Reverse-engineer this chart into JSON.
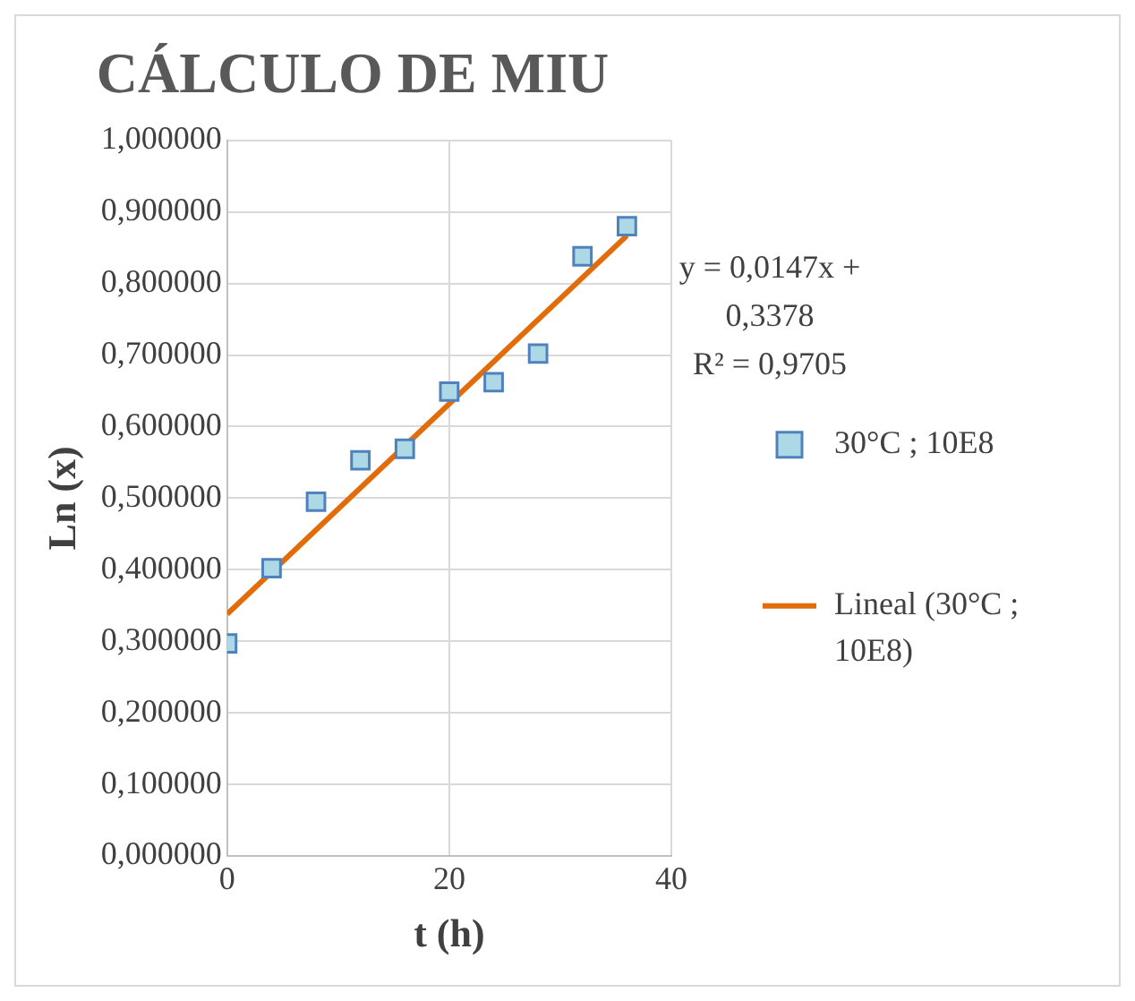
{
  "chart_data": {
    "type": "scatter",
    "title": "CÁLCULO DE MIU",
    "xlabel": "t (h)",
    "ylabel": "Ln (x)",
    "x": [
      0,
      4,
      8,
      12,
      16,
      20,
      24,
      28,
      32,
      36
    ],
    "series": [
      {
        "name": "30°C ; 10E8",
        "type": "scatter",
        "color": "#add8e6",
        "marker": "square",
        "values": [
          0.297,
          0.402,
          0.495,
          0.553,
          0.569,
          0.649,
          0.662,
          0.702,
          0.838,
          0.88
        ]
      },
      {
        "name": "Lineal (30°C ; 10E8)",
        "type": "line",
        "color": "#e36c0a",
        "marker": "none",
        "x": [
          0,
          36
        ],
        "values": [
          0.338,
          0.867
        ]
      }
    ],
    "xlim": [
      0,
      40
    ],
    "xticks": [
      0,
      20,
      40
    ],
    "ylim": [
      0,
      1
    ],
    "yticks": [
      {
        "value": 0,
        "label": "0,000000"
      },
      {
        "value": 0.1,
        "label": "0,100000"
      },
      {
        "value": 0.2,
        "label": "0,200000"
      },
      {
        "value": 0.3,
        "label": "0,300000"
      },
      {
        "value": 0.4,
        "label": "0,400000"
      },
      {
        "value": 0.5,
        "label": "0,500000"
      },
      {
        "value": 0.6,
        "label": "0,600000"
      },
      {
        "value": 0.7,
        "label": "0,700000"
      },
      {
        "value": 0.8,
        "label": "0,800000"
      },
      {
        "value": 0.9,
        "label": "0,900000"
      },
      {
        "value": 1,
        "label": "1,000000"
      }
    ],
    "grid": true,
    "legend": "right",
    "annotations": [
      "y = 0,0147x +\n0,3378\nR² = 0,9705"
    ]
  }
}
